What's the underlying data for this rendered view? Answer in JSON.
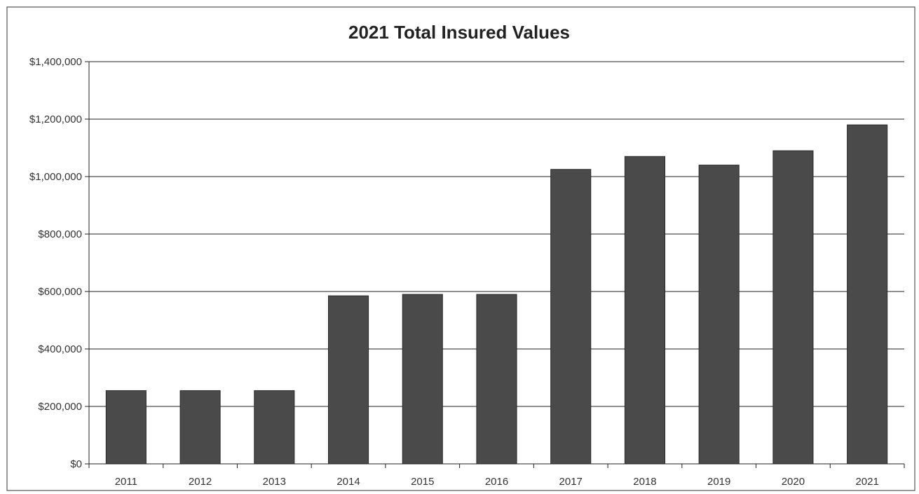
{
  "chart_data": {
    "type": "bar",
    "title": "2021 Total Insured Values",
    "xlabel": "",
    "ylabel": "",
    "categories": [
      "2011",
      "2012",
      "2013",
      "2014",
      "2015",
      "2016",
      "2017",
      "2018",
      "2019",
      "2020",
      "2021"
    ],
    "values": [
      255000,
      255000,
      255000,
      585000,
      590000,
      590000,
      1025000,
      1070000,
      1040000,
      1090000,
      1180000
    ],
    "ylim": [
      0,
      1400000
    ],
    "yticks": [
      0,
      200000,
      400000,
      600000,
      800000,
      1000000,
      1200000,
      1400000
    ],
    "ytick_labels": [
      "$0",
      "$200,000",
      "$400,000",
      "$600,000",
      "$800,000",
      "$1,000,000",
      "$1,200,000",
      "$1,400,000"
    ],
    "grid": true,
    "legend": "none",
    "bar_color": "#4a4a4a"
  }
}
